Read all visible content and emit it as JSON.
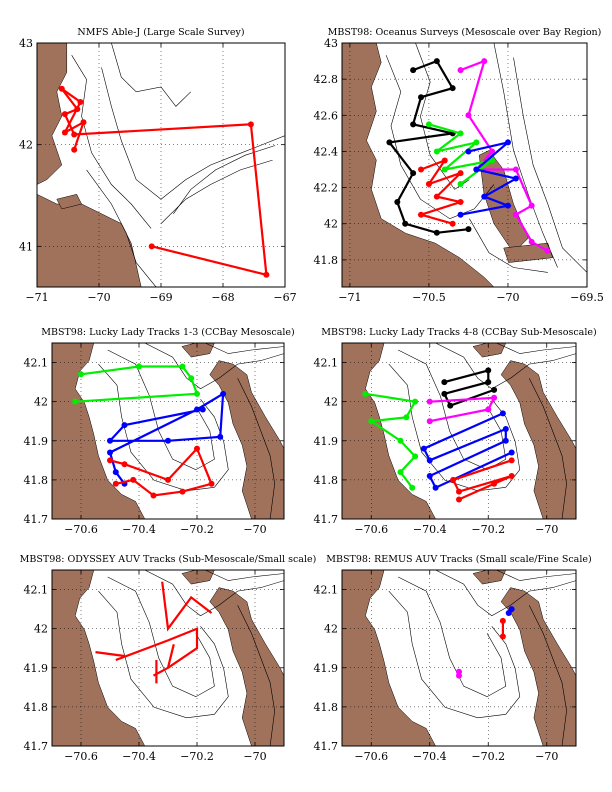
{
  "colors": {
    "land": "#a0725c",
    "contour": "#000000",
    "red": "#ff0000",
    "green": "#00ee00",
    "blue": "#0000ff",
    "black": "#000000",
    "magenta": "#ff00ff",
    "grid": "#000000"
  },
  "panels": [
    {
      "title": "NMFS Able-J (Large Scale Survey)",
      "xlim": [
        -71,
        -67
      ],
      "ylim": [
        40.6,
        43
      ],
      "xticks": [
        -71,
        -70,
        -69,
        -68,
        -67
      ],
      "xtick_labels": [
        "−71",
        "−70",
        "−69",
        "−68",
        "−67"
      ],
      "yticks": [
        41,
        42,
        43
      ],
      "ytick_labels": [
        "41",
        "42",
        "43"
      ],
      "tracks": [
        {
          "color": "red",
          "markers": true,
          "points": [
            [
              -69.15,
              41.0
            ],
            [
              -67.3,
              40.72
            ],
            [
              -67.55,
              42.2
            ],
            [
              -70.4,
              42.1
            ],
            [
              -70.55,
              42.3
            ],
            [
              -70.35,
              42.35
            ],
            [
              -70.6,
              42.55
            ],
            [
              -70.3,
              42.42
            ],
            [
              -70.55,
              42.12
            ],
            [
              -70.25,
              42.22
            ],
            [
              -70.4,
              41.95
            ]
          ]
        }
      ]
    },
    {
      "title": "MBST98: Oceanus Surveys (Mesoscale over Bay Region)",
      "xlim": [
        -71.05,
        -69.5
      ],
      "ylim": [
        41.65,
        43
      ],
      "xticks": [
        -71,
        -70.5,
        -70,
        -69.5
      ],
      "xtick_labels": [
        "−71",
        "−70.5",
        "−70",
        "−69.5"
      ],
      "yticks": [
        41.8,
        42,
        42.2,
        42.4,
        42.6,
        42.8,
        43
      ],
      "ytick_labels": [
        "41.8",
        "42",
        "42.2",
        "42.4",
        "42.6",
        "42.8",
        "43"
      ],
      "tracks": [
        {
          "color": "black",
          "markers": true,
          "points": [
            [
              -70.6,
              42.85
            ],
            [
              -70.45,
              42.9
            ],
            [
              -70.35,
              42.75
            ],
            [
              -70.55,
              42.7
            ],
            [
              -70.6,
              42.55
            ],
            [
              -70.35,
              42.5
            ],
            [
              -70.75,
              42.45
            ],
            [
              -70.6,
              42.28
            ],
            [
              -70.7,
              42.12
            ],
            [
              -70.65,
              42.0
            ],
            [
              -70.45,
              41.95
            ],
            [
              -70.25,
              41.97
            ]
          ]
        },
        {
          "color": "magenta",
          "markers": true,
          "points": [
            [
              -70.3,
              42.85
            ],
            [
              -70.15,
              42.9
            ],
            [
              -70.25,
              42.6
            ],
            [
              -70.1,
              42.4
            ],
            [
              -70.2,
              42.3
            ],
            [
              -69.95,
              42.3
            ],
            [
              -69.85,
              42.1
            ],
            [
              -69.95,
              42.05
            ],
            [
              -69.85,
              41.9
            ],
            [
              -69.75,
              41.85
            ]
          ]
        },
        {
          "color": "green",
          "markers": true,
          "points": [
            [
              -70.5,
              42.55
            ],
            [
              -70.3,
              42.5
            ],
            [
              -70.45,
              42.4
            ],
            [
              -70.2,
              42.45
            ],
            [
              -70.4,
              42.3
            ],
            [
              -70.1,
              42.35
            ],
            [
              -70.3,
              42.22
            ]
          ]
        },
        {
          "color": "blue",
          "markers": true,
          "points": [
            [
              -70.25,
              42.4
            ],
            [
              -70.0,
              42.45
            ],
            [
              -70.2,
              42.3
            ],
            [
              -69.95,
              42.25
            ],
            [
              -70.15,
              42.15
            ],
            [
              -70.0,
              42.1
            ],
            [
              -70.3,
              42.05
            ]
          ]
        },
        {
          "color": "red",
          "markers": true,
          "points": [
            [
              -70.55,
              42.3
            ],
            [
              -70.4,
              42.35
            ],
            [
              -70.5,
              42.22
            ],
            [
              -70.3,
              42.28
            ],
            [
              -70.45,
              42.15
            ],
            [
              -70.3,
              42.12
            ],
            [
              -70.55,
              42.05
            ],
            [
              -70.35,
              42.0
            ]
          ]
        }
      ]
    },
    {
      "title": "MBST98: Lucky Lady Tracks 1-3 (CCBay Mesoscale)",
      "xlim": [
        -70.7,
        -69.9
      ],
      "ylim": [
        41.7,
        42.15
      ],
      "xticks": [
        -70.6,
        -70.4,
        -70.2,
        -70
      ],
      "xtick_labels": [
        "−70.6",
        "−70.4",
        "−70.2",
        "−70"
      ],
      "yticks": [
        41.7,
        41.8,
        41.9,
        42,
        42.1
      ],
      "ytick_labels": [
        "41.7",
        "41.8",
        "41.9",
        "42",
        "42.1"
      ],
      "tracks": [
        {
          "color": "green",
          "markers": true,
          "points": [
            [
              -70.6,
              42.07
            ],
            [
              -70.4,
              42.09
            ],
            [
              -70.25,
              42.09
            ],
            [
              -70.22,
              42.06
            ],
            [
              -70.2,
              42.02
            ],
            [
              -70.62,
              42.0
            ]
          ]
        },
        {
          "color": "blue",
          "markers": true,
          "points": [
            [
              -70.18,
              41.98
            ],
            [
              -70.45,
              41.94
            ],
            [
              -70.5,
              41.9
            ],
            [
              -70.3,
              41.9
            ],
            [
              -70.12,
              41.91
            ],
            [
              -70.11,
              42.02
            ],
            [
              -70.2,
              41.98
            ],
            [
              -70.5,
              41.87
            ],
            [
              -70.48,
              41.82
            ],
            [
              -70.45,
              41.79
            ]
          ]
        },
        {
          "color": "red",
          "markers": true,
          "points": [
            [
              -70.5,
              41.85
            ],
            [
              -70.45,
              41.84
            ],
            [
              -70.3,
              41.8
            ],
            [
              -70.2,
              41.88
            ],
            [
              -70.15,
              41.79
            ],
            [
              -70.25,
              41.77
            ],
            [
              -70.35,
              41.76
            ],
            [
              -70.42,
              41.8
            ],
            [
              -70.48,
              41.79
            ]
          ]
        }
      ]
    },
    {
      "title": "MBST98: Lucky Lady Tracks 4-8 (CCBay Sub-Mesoscale)",
      "xlim": [
        -70.7,
        -69.9
      ],
      "ylim": [
        41.7,
        42.15
      ],
      "xticks": [
        -70.6,
        -70.4,
        -70.2,
        -70
      ],
      "xtick_labels": [
        "−70.6",
        "−70.4",
        "−70.2",
        "−70"
      ],
      "yticks": [
        41.7,
        41.8,
        41.9,
        42,
        42.1
      ],
      "ytick_labels": [
        "41.7",
        "41.8",
        "41.9",
        "42",
        "42.1"
      ],
      "tracks": [
        {
          "color": "black",
          "markers": true,
          "points": [
            [
              -70.35,
              42.05
            ],
            [
              -70.2,
              42.08
            ],
            [
              -70.2,
              42.05
            ],
            [
              -70.35,
              42.02
            ],
            [
              -70.33,
              41.99
            ],
            [
              -70.18,
              42.03
            ]
          ]
        },
        {
          "color": "magenta",
          "markers": true,
          "points": [
            [
              -70.4,
              42.0
            ],
            [
              -70.18,
              42.01
            ],
            [
              -70.2,
              41.98
            ],
            [
              -70.4,
              41.95
            ]
          ]
        },
        {
          "color": "green",
          "markers": true,
          "points": [
            [
              -70.62,
              42.02
            ],
            [
              -70.45,
              42.0
            ],
            [
              -70.48,
              41.96
            ],
            [
              -70.6,
              41.95
            ],
            [
              -70.5,
              41.9
            ],
            [
              -70.45,
              41.86
            ],
            [
              -70.5,
              41.82
            ],
            [
              -70.46,
              41.78
            ]
          ]
        },
        {
          "color": "blue",
          "markers": true,
          "points": [
            [
              -70.15,
              41.97
            ],
            [
              -70.42,
              41.88
            ],
            [
              -70.4,
              41.85
            ],
            [
              -70.14,
              41.93
            ],
            [
              -70.14,
              41.9
            ],
            [
              -70.4,
              41.81
            ],
            [
              -70.38,
              41.78
            ],
            [
              -70.12,
              41.87
            ]
          ]
        },
        {
          "color": "red",
          "markers": true,
          "points": [
            [
              -70.12,
              41.85
            ],
            [
              -70.32,
              41.8
            ],
            [
              -70.3,
              41.77
            ],
            [
              -70.12,
              41.81
            ],
            [
              -70.18,
              41.79
            ],
            [
              -70.3,
              41.75
            ]
          ]
        }
      ]
    },
    {
      "title": "MBST98: ODYSSEY AUV Tracks (Sub-Mesoscale/Small scale)",
      "xlim": [
        -70.7,
        -69.9
      ],
      "ylim": [
        41.7,
        42.15
      ],
      "xticks": [
        -70.6,
        -70.4,
        -70.2,
        -70
      ],
      "xtick_labels": [
        "−70.6",
        "−70.4",
        "−70.2",
        "−70"
      ],
      "yticks": [
        41.7,
        41.8,
        41.9,
        42,
        42.1
      ],
      "ytick_labels": [
        "41.7",
        "41.8",
        "41.9",
        "42",
        "42.1"
      ],
      "tracks": [
        {
          "color": "red",
          "markers": false,
          "points": [
            [
              -70.32,
              42.12
            ],
            [
              -70.3,
              42.0
            ],
            [
              -70.22,
              42.08
            ],
            [
              -70.15,
              42.04
            ]
          ]
        },
        {
          "color": "red",
          "markers": false,
          "points": [
            [
              -70.48,
              41.92
            ],
            [
              -70.3,
              41.97
            ],
            [
              -70.2,
              42.0
            ],
            [
              -70.2,
              41.95
            ],
            [
              -70.3,
              41.9
            ]
          ]
        },
        {
          "color": "red",
          "markers": false,
          "points": [
            [
              -70.28,
              41.96
            ],
            [
              -70.3,
              41.9
            ],
            [
              -70.35,
              41.88
            ]
          ]
        },
        {
          "color": "red",
          "markers": false,
          "points": [
            [
              -70.34,
              41.92
            ],
            [
              -70.34,
              41.86
            ]
          ]
        },
        {
          "color": "red",
          "markers": false,
          "points": [
            [
              -70.45,
              41.93
            ],
            [
              -70.55,
              41.94
            ]
          ]
        }
      ]
    },
    {
      "title": "MBST98: REMUS AUV Tracks (Small scale/Fine Scale)",
      "xlim": [
        -70.7,
        -69.9
      ],
      "ylim": [
        41.7,
        42.15
      ],
      "xticks": [
        -70.6,
        -70.4,
        -70.2,
        -70
      ],
      "xtick_labels": [
        "−70.6",
        "−70.4",
        "−70.2",
        "−70"
      ],
      "yticks": [
        41.7,
        41.8,
        41.9,
        42,
        42.1
      ],
      "ytick_labels": [
        "41.7",
        "41.8",
        "41.9",
        "42",
        "42.1"
      ],
      "tracks": [
        {
          "color": "blue",
          "markers": true,
          "points": [
            [
              -70.13,
              42.04
            ],
            [
              -70.12,
              42.05
            ]
          ]
        },
        {
          "color": "red",
          "markers": true,
          "points": [
            [
              -70.15,
              42.02
            ],
            [
              -70.15,
              41.98
            ]
          ]
        },
        {
          "color": "magenta",
          "markers": true,
          "points": [
            [
              -70.3,
              41.88
            ],
            [
              -70.3,
              41.89
            ]
          ]
        }
      ]
    }
  ]
}
